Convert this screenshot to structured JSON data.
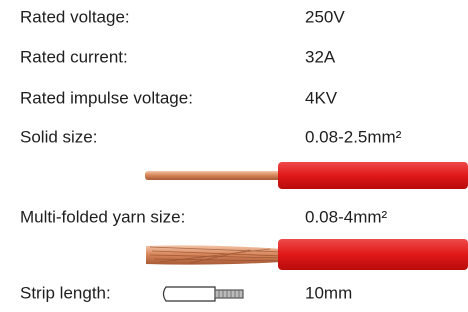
{
  "specs": {
    "rows": [
      {
        "label": "Rated voltage:",
        "value": "250V"
      },
      {
        "label": "Rated current:",
        "value": "32A"
      },
      {
        "label": "Rated impulse voltage:",
        "value": "4KV"
      },
      {
        "label": "Solid size:",
        "value": "0.08-2.5mm²"
      },
      {
        "label": "Multi-folded yarn size:",
        "value": "0.08-4mm²"
      },
      {
        "label": "Strip length:",
        "value": "10mm"
      }
    ]
  }
}
